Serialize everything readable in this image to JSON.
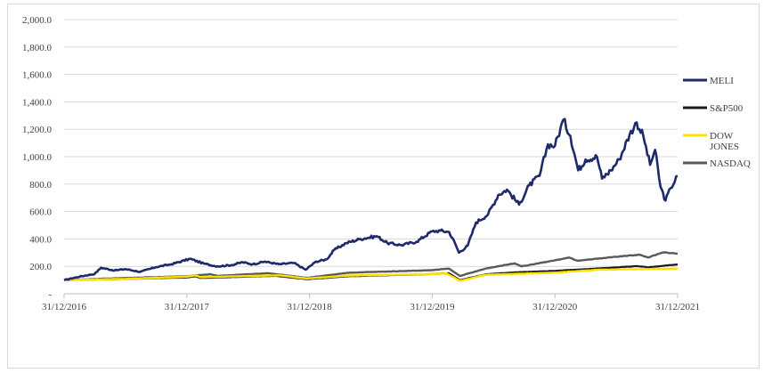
{
  "chart_data": {
    "type": "line",
    "title": "",
    "xlabel": "",
    "ylabel": "",
    "ylim": [
      0,
      2000
    ],
    "yticks": [
      0,
      200,
      400,
      600,
      800,
      1000,
      1200,
      1400,
      1600,
      1800,
      2000
    ],
    "ytick_labels": [
      "-",
      "200.0",
      "400.0",
      "600.0",
      "800.0",
      "1,000.0",
      "1,200.0",
      "1,400.0",
      "1,600.0",
      "1,800.0",
      "2,000.0"
    ],
    "xticks": [
      "31/12/2016",
      "31/12/2017",
      "31/12/2018",
      "31/12/2019",
      "31/12/2020",
      "31/12/2021"
    ],
    "grid": "horizontal",
    "legend_position": "right",
    "series": [
      {
        "name": "MELI",
        "color": "#1f2a6b",
        "points": [
          [
            "2016-12-31",
            100
          ],
          [
            "2017-02-15",
            125
          ],
          [
            "2017-04-01",
            145
          ],
          [
            "2017-04-20",
            190
          ],
          [
            "2017-05-30",
            170
          ],
          [
            "2017-07-01",
            180
          ],
          [
            "2017-08-15",
            160
          ],
          [
            "2017-10-01",
            195
          ],
          [
            "2017-11-15",
            215
          ],
          [
            "2018-01-10",
            255
          ],
          [
            "2018-02-20",
            220
          ],
          [
            "2018-04-01",
            200
          ],
          [
            "2018-05-15",
            210
          ],
          [
            "2018-06-15",
            230
          ],
          [
            "2018-07-15",
            215
          ],
          [
            "2018-08-20",
            235
          ],
          [
            "2018-10-01",
            215
          ],
          [
            "2018-11-15",
            225
          ],
          [
            "2018-12-20",
            175
          ],
          [
            "2019-01-20",
            235
          ],
          [
            "2019-02-20",
            250
          ],
          [
            "2019-03-15",
            320
          ],
          [
            "2019-04-20",
            370
          ],
          [
            "2019-06-01",
            400
          ],
          [
            "2019-07-20",
            420
          ],
          [
            "2019-08-20",
            370
          ],
          [
            "2019-10-01",
            355
          ],
          [
            "2019-11-15",
            380
          ],
          [
            "2019-12-31",
            455
          ],
          [
            "2020-01-25",
            460
          ],
          [
            "2020-02-20",
            450
          ],
          [
            "2020-03-10",
            360
          ],
          [
            "2020-03-20",
            300
          ],
          [
            "2020-04-15",
            350
          ],
          [
            "2020-05-10",
            520
          ],
          [
            "2020-06-15",
            580
          ],
          [
            "2020-07-15",
            720
          ],
          [
            "2020-08-10",
            760
          ],
          [
            "2020-09-15",
            650
          ],
          [
            "2020-10-15",
            790
          ],
          [
            "2020-11-15",
            860
          ],
          [
            "2020-12-10",
            1090
          ],
          [
            "2020-12-31",
            1080
          ],
          [
            "2021-01-25",
            1270
          ],
          [
            "2021-02-15",
            1150
          ],
          [
            "2021-03-10",
            900
          ],
          [
            "2021-04-01",
            980
          ],
          [
            "2021-05-05",
            1000
          ],
          [
            "2021-05-20",
            840
          ],
          [
            "2021-06-15",
            900
          ],
          [
            "2021-07-10",
            980
          ],
          [
            "2021-08-10",
            1160
          ],
          [
            "2021-08-31",
            1250
          ],
          [
            "2021-09-20",
            1150
          ],
          [
            "2021-10-10",
            940
          ],
          [
            "2021-10-25",
            1050
          ],
          [
            "2021-11-10",
            780
          ],
          [
            "2021-11-25",
            680
          ],
          [
            "2021-12-10",
            770
          ],
          [
            "2021-12-31",
            860
          ]
        ]
      },
      {
        "name": "S&P500",
        "color": "#1a1a1a",
        "points": [
          [
            "2016-12-31",
            100
          ],
          [
            "2017-06-30",
            108
          ],
          [
            "2017-12-31",
            119
          ],
          [
            "2018-01-26",
            127
          ],
          [
            "2018-02-10",
            115
          ],
          [
            "2018-09-20",
            131
          ],
          [
            "2018-12-24",
            106
          ],
          [
            "2019-04-30",
            128
          ],
          [
            "2019-12-31",
            144
          ],
          [
            "2020-02-19",
            150
          ],
          [
            "2020-03-23",
            99
          ],
          [
            "2020-06-08",
            142
          ],
          [
            "2020-09-01",
            156
          ],
          [
            "2020-12-31",
            167
          ],
          [
            "2021-06-30",
            192
          ],
          [
            "2021-09-02",
            202
          ],
          [
            "2021-10-04",
            193
          ],
          [
            "2021-12-31",
            214
          ]
        ]
      },
      {
        "name": "DOW JONES",
        "color": "#ffe000",
        "points": [
          [
            "2016-12-31",
            100
          ],
          [
            "2017-06-30",
            108
          ],
          [
            "2017-12-31",
            125
          ],
          [
            "2018-01-26",
            134
          ],
          [
            "2018-02-10",
            121
          ],
          [
            "2018-10-03",
            135
          ],
          [
            "2018-12-24",
            111
          ],
          [
            "2019-04-30",
            133
          ],
          [
            "2019-12-31",
            144
          ],
          [
            "2020-02-12",
            149
          ],
          [
            "2020-03-23",
            94
          ],
          [
            "2020-06-08",
            138
          ],
          [
            "2020-12-31",
            154
          ],
          [
            "2021-05-07",
            175
          ],
          [
            "2021-08-16",
            179
          ],
          [
            "2021-12-31",
            183
          ]
        ]
      },
      {
        "name": "NASDAQ",
        "color": "#595959",
        "points": [
          [
            "2016-12-31",
            100
          ],
          [
            "2017-06-30",
            115
          ],
          [
            "2017-12-31",
            128
          ],
          [
            "2018-03-12",
            143
          ],
          [
            "2018-04-02",
            130
          ],
          [
            "2018-08-30",
            150
          ],
          [
            "2018-12-24",
            116
          ],
          [
            "2019-04-30",
            154
          ],
          [
            "2019-12-31",
            172
          ],
          [
            "2020-02-19",
            184
          ],
          [
            "2020-03-23",
            130
          ],
          [
            "2020-06-10",
            185
          ],
          [
            "2020-09-02",
            222
          ],
          [
            "2020-09-23",
            200
          ],
          [
            "2020-12-31",
            244
          ],
          [
            "2021-02-12",
            264
          ],
          [
            "2021-03-08",
            240
          ],
          [
            "2021-06-30",
            270
          ],
          [
            "2021-09-07",
            285
          ],
          [
            "2021-10-04",
            265
          ],
          [
            "2021-11-19",
            302
          ],
          [
            "2021-12-31",
            293
          ]
        ]
      }
    ],
    "legend": [
      "MELI",
      "S&P500",
      "DOW JONES",
      "NASDAQ"
    ]
  }
}
